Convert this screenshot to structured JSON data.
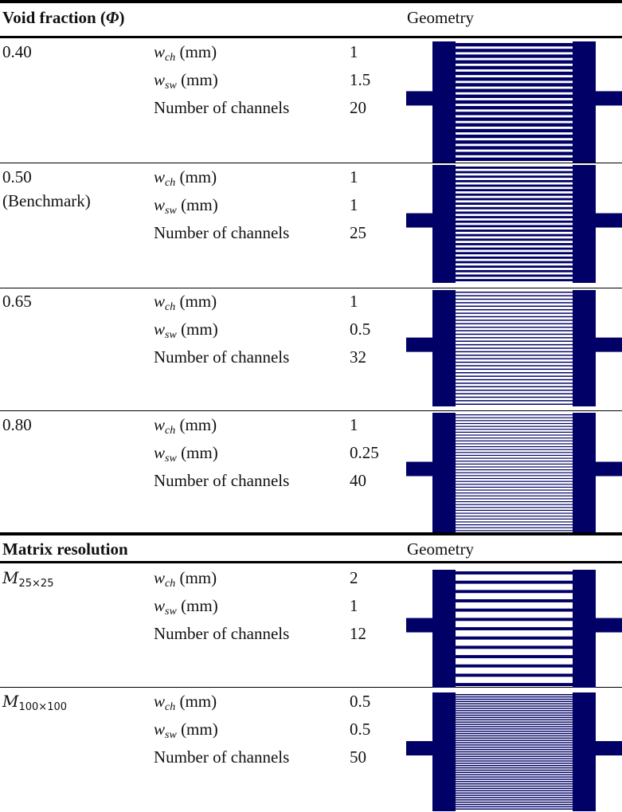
{
  "header_void": {
    "title": "Void fraction (",
    "symbol": "Φ",
    "close": ")",
    "geometry": "Geometry"
  },
  "header_matrix": {
    "title": "Matrix resolution",
    "geometry": "Geometry"
  },
  "param_labels": {
    "wch_w": "w",
    "wch_sub": "ch",
    "wch_unit": " (mm)",
    "wsw_w": "w",
    "wsw_sub": "sw",
    "wsw_unit": " (mm)",
    "nchan": "Number of channels"
  },
  "void_rows": [
    {
      "phi": "0.40",
      "note": "",
      "wch": "1",
      "wsw": "1.5",
      "n": "20"
    },
    {
      "phi": "0.50",
      "note": "(Benchmark)",
      "wch": "1",
      "wsw": "1",
      "n": "25"
    },
    {
      "phi": "0.65",
      "note": "",
      "wch": "1",
      "wsw": "0.5",
      "n": "32"
    },
    {
      "phi": "0.80",
      "note": "",
      "wch": "1",
      "wsw": "0.25",
      "n": "40"
    }
  ],
  "matrix_rows": [
    {
      "m": "M",
      "sub": "25×25",
      "wch": "2",
      "wsw": "1",
      "n": "12"
    },
    {
      "m": "M",
      "sub": "100×100",
      "wch": "0.5",
      "wsw": "0.5",
      "n": "50"
    }
  ],
  "colors": {
    "geometry_fill": "#000066",
    "rule": "#000000"
  }
}
